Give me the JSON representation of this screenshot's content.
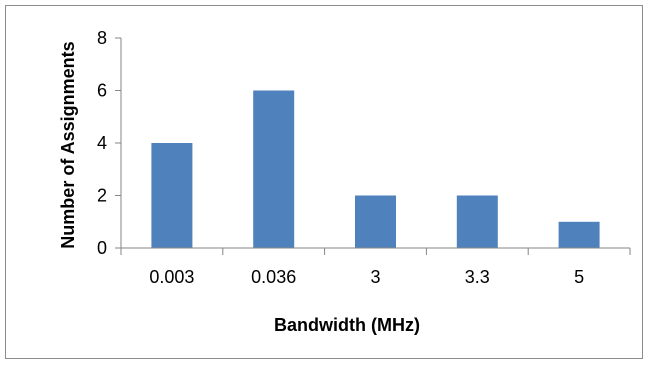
{
  "chart_data": {
    "type": "bar",
    "title": "",
    "xlabel": "Bandwidth (MHz)",
    "ylabel": "Number of Assignments",
    "categories": [
      "0.003",
      "0.036",
      "3",
      "3.3",
      "5"
    ],
    "values": [
      4,
      6,
      2,
      2,
      1
    ],
    "ylim": [
      0,
      8
    ],
    "yticks": [
      0,
      2,
      4,
      6,
      8
    ],
    "grid": false,
    "legend": "none",
    "bar_color": "#4f81bd",
    "axis_color": "#868686"
  }
}
